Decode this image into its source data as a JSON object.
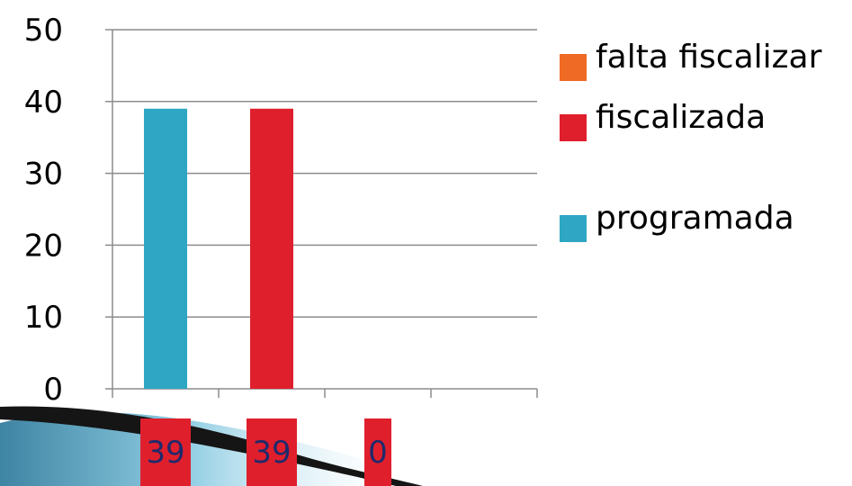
{
  "chart_data": {
    "type": "bar",
    "categories": [
      "",
      "",
      "",
      ""
    ],
    "ylim": [
      0,
      50
    ],
    "yticks": [
      0,
      10,
      20,
      30,
      40,
      50
    ],
    "grid": true,
    "legend_position": "right",
    "series": [
      {
        "name": "programada",
        "color": "#2ea6c4",
        "values": [
          39,
          null,
          null,
          null
        ]
      },
      {
        "name": "fiscalizada",
        "color": "#e01f2d",
        "values": [
          null,
          39,
          null,
          null
        ]
      },
      {
        "name": "falta fiscalizar",
        "color": "#ef6a24",
        "values": [
          null,
          null,
          null,
          null
        ]
      }
    ],
    "value_labels": [
      "39",
      "39",
      "0"
    ]
  },
  "legend": [
    {
      "label": "falta fiscalizar",
      "color": "#ef6a24"
    },
    {
      "label": "fiscalizada",
      "color": "#e01f2d"
    },
    {
      "label": "programada",
      "color": "#2ea6c4"
    }
  ],
  "colors": {
    "label_box": "#e01f2d",
    "label_text": "#1f2a6b",
    "gridline": "#8c8c8c",
    "decor_teal": "#2f8fb0",
    "decor_dark": "#151515"
  }
}
